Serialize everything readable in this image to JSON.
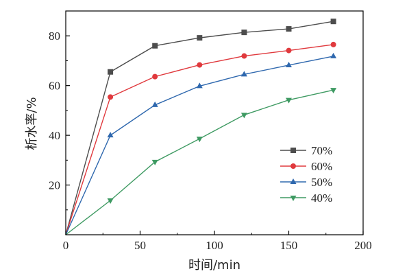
{
  "chart_data": {
    "type": "line",
    "title": "",
    "xlabel": "时间/min",
    "ylabel": "析水率/%",
    "xlim": [
      0,
      200
    ],
    "ylim": [
      0,
      90
    ],
    "xticks": [
      0,
      50,
      100,
      150,
      200
    ],
    "yticks": [
      20,
      40,
      60,
      80
    ],
    "x": [
      0,
      30,
      60,
      90,
      120,
      150,
      180
    ],
    "grid": false,
    "legend_position": "lower-right",
    "series": [
      {
        "name": "70%",
        "color": "#4d4d4d",
        "marker": "square",
        "values": [
          0,
          65.5,
          76.0,
          79.2,
          81.4,
          82.8,
          85.8
        ]
      },
      {
        "name": "60%",
        "color": "#e0393d",
        "marker": "circle",
        "values": [
          0,
          55.4,
          63.6,
          68.3,
          71.9,
          74.1,
          76.5
        ]
      },
      {
        "name": "50%",
        "color": "#2f68ae",
        "marker": "triangle-up",
        "values": [
          0,
          40.0,
          52.2,
          59.8,
          64.5,
          68.2,
          71.8
        ]
      },
      {
        "name": "40%",
        "color": "#3e9a62",
        "marker": "triangle-down",
        "values": [
          0,
          13.8,
          29.3,
          38.6,
          48.2,
          54.2,
          58.2
        ]
      }
    ]
  }
}
